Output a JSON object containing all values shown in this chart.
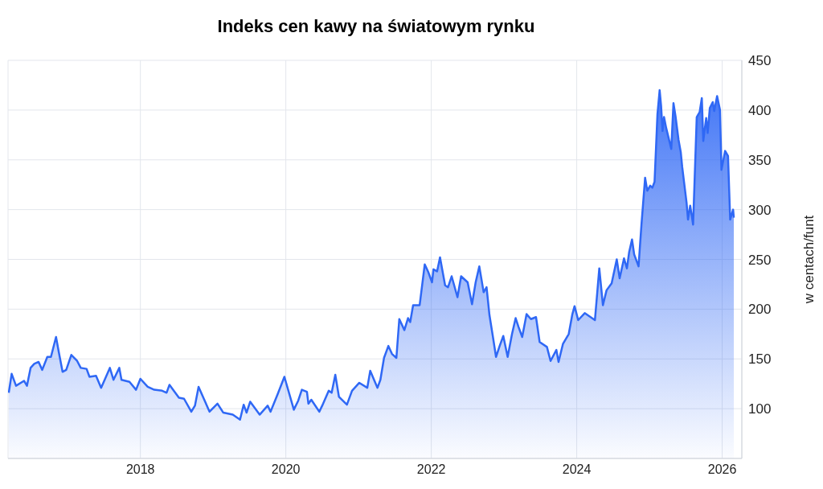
{
  "chart_data": {
    "type": "area",
    "title": "Indeks cen kawy na światowym rynku",
    "ylabel": "w centach/funt",
    "x": [
      2016.19,
      2016.23,
      2016.29,
      2016.4,
      2016.44,
      2016.49,
      2016.54,
      2016.6,
      2016.65,
      2016.72,
      2016.77,
      2016.84,
      2016.88,
      2016.93,
      2016.98,
      2017.05,
      2017.13,
      2017.18,
      2017.26,
      2017.3,
      2017.39,
      2017.46,
      2017.58,
      2017.63,
      2017.71,
      2017.74,
      2017.85,
      2017.94,
      2018.0,
      2018.1,
      2018.19,
      2018.3,
      2018.36,
      2018.4,
      2018.53,
      2018.6,
      2018.7,
      2018.75,
      2018.8,
      2018.86,
      2018.95,
      2019.06,
      2019.14,
      2019.27,
      2019.37,
      2019.42,
      2019.46,
      2019.51,
      2019.64,
      2019.75,
      2019.79,
      2019.89,
      2019.98,
      2020.11,
      2020.17,
      2020.22,
      2020.29,
      2020.31,
      2020.35,
      2020.46,
      2020.5,
      2020.59,
      2020.63,
      2020.68,
      2020.73,
      2020.84,
      2020.91,
      2021.01,
      2021.12,
      2021.16,
      2021.26,
      2021.3,
      2021.35,
      2021.41,
      2021.46,
      2021.52,
      2021.56,
      2021.63,
      2021.68,
      2021.71,
      2021.75,
      2021.84,
      2021.91,
      2021.96,
      2022.01,
      2022.03,
      2022.08,
      2022.12,
      2022.19,
      2022.23,
      2022.28,
      2022.36,
      2022.41,
      2022.5,
      2022.56,
      2022.61,
      2022.66,
      2022.72,
      2022.76,
      2022.8,
      2022.85,
      2022.89,
      2022.94,
      2022.99,
      2023.05,
      2023.11,
      2023.16,
      2023.2,
      2023.25,
      2023.31,
      2023.37,
      2023.44,
      2023.49,
      2023.59,
      2023.64,
      2023.72,
      2023.75,
      2023.81,
      2023.89,
      2023.94,
      2023.97,
      2024.02,
      2024.11,
      2024.25,
      2024.28,
      2024.31,
      2024.36,
      2024.41,
      2024.48,
      2024.55,
      2024.59,
      2024.65,
      2024.69,
      2024.72,
      2024.76,
      2024.79,
      2024.85,
      2024.89,
      2024.94,
      2024.97,
      2025.01,
      2025.04,
      2025.07,
      2025.11,
      2025.14,
      2025.16,
      2025.18,
      2025.2,
      2025.23,
      2025.3,
      2025.33,
      2025.36,
      2025.4,
      2025.43,
      2025.45,
      2025.51,
      2025.53,
      2025.56,
      2025.6,
      2025.65,
      2025.69,
      2025.72,
      2025.74,
      2025.78,
      2025.8,
      2025.83,
      2025.87,
      2025.89,
      2025.93,
      2025.97,
      2025.99,
      2026.04,
      2026.08,
      2026.11,
      2026.15,
      2026.16
    ],
    "series": [
      {
        "color": "#2f68f5",
        "values": [
          116,
          135,
          123,
          128,
          123,
          141,
          145,
          147,
          139,
          152,
          152,
          172,
          156,
          137,
          139,
          154,
          148,
          141,
          140,
          132,
          133,
          121,
          141,
          129,
          141,
          129,
          127,
          119,
          130,
          122,
          119,
          118,
          116,
          124,
          111,
          110,
          97,
          103,
          122,
          112,
          97,
          105,
          96,
          94,
          89,
          104,
          96,
          107,
          94,
          103,
          97,
          115,
          132,
          99,
          108,
          119,
          117,
          105,
          109,
          97,
          103,
          118,
          116,
          134,
          112,
          104,
          118,
          126,
          121,
          138,
          121,
          129,
          151,
          163,
          155,
          151,
          190,
          179,
          191,
          187,
          204,
          204,
          245,
          237,
          227,
          240,
          238,
          252,
          224,
          222,
          233,
          212,
          233,
          227,
          205,
          227,
          243,
          217,
          222,
          194,
          171,
          152,
          163,
          173,
          152,
          175,
          191,
          182,
          172,
          195,
          190,
          192,
          167,
          162,
          148,
          159,
          147,
          165,
          175,
          195,
          203,
          189,
          196,
          189,
          215,
          241,
          204,
          219,
          226,
          250,
          231,
          251,
          241,
          257,
          270,
          255,
          243,
          285,
          332,
          319,
          324,
          322,
          328,
          396,
          420,
          404,
          379,
          393,
          382,
          361,
          407,
          393,
          370,
          358,
          343,
          307,
          290,
          304,
          285,
          393,
          398,
          412,
          369,
          392,
          377,
          402,
          408,
          399,
          414,
          400,
          340,
          359,
          354,
          290,
          300,
          292
        ]
      }
    ],
    "xlim": [
      2016.18,
      2026.27
    ],
    "xticks": [
      2018,
      2020,
      2022,
      2024,
      2026
    ],
    "ylim": [
      50,
      450
    ],
    "yticks": [
      100,
      150,
      200,
      250,
      300,
      350,
      400,
      450
    ],
    "grid": true
  }
}
